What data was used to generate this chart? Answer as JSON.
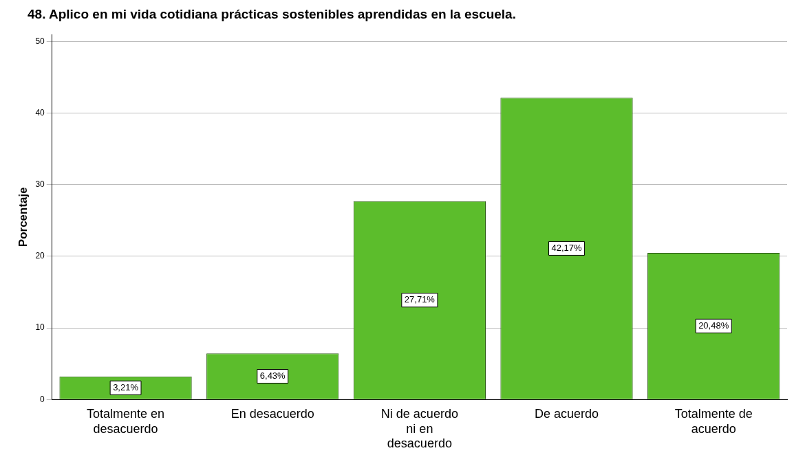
{
  "chart_data": {
    "type": "bar",
    "title": "48. Aplico en mi vida cotidiana prácticas sostenibles aprendidas en la escuela.",
    "ylabel": "Porcentaje",
    "categories": [
      "Totalmente en desacuerdo",
      "En desacuerdo",
      "Ni de acuerdo ni en desacuerdo",
      "De acuerdo",
      "Totalmente de acuerdo"
    ],
    "values": [
      3.21,
      6.43,
      27.71,
      42.17,
      20.48
    ],
    "value_labels": [
      "3,21%",
      "6,43%",
      "27,71%",
      "42,17%",
      "20,48%"
    ],
    "color": "#5cbd2c",
    "ylim": [
      0,
      51
    ],
    "yticks": [
      0,
      10,
      20,
      30,
      40,
      50
    ],
    "grid": "y",
    "legend": false
  }
}
